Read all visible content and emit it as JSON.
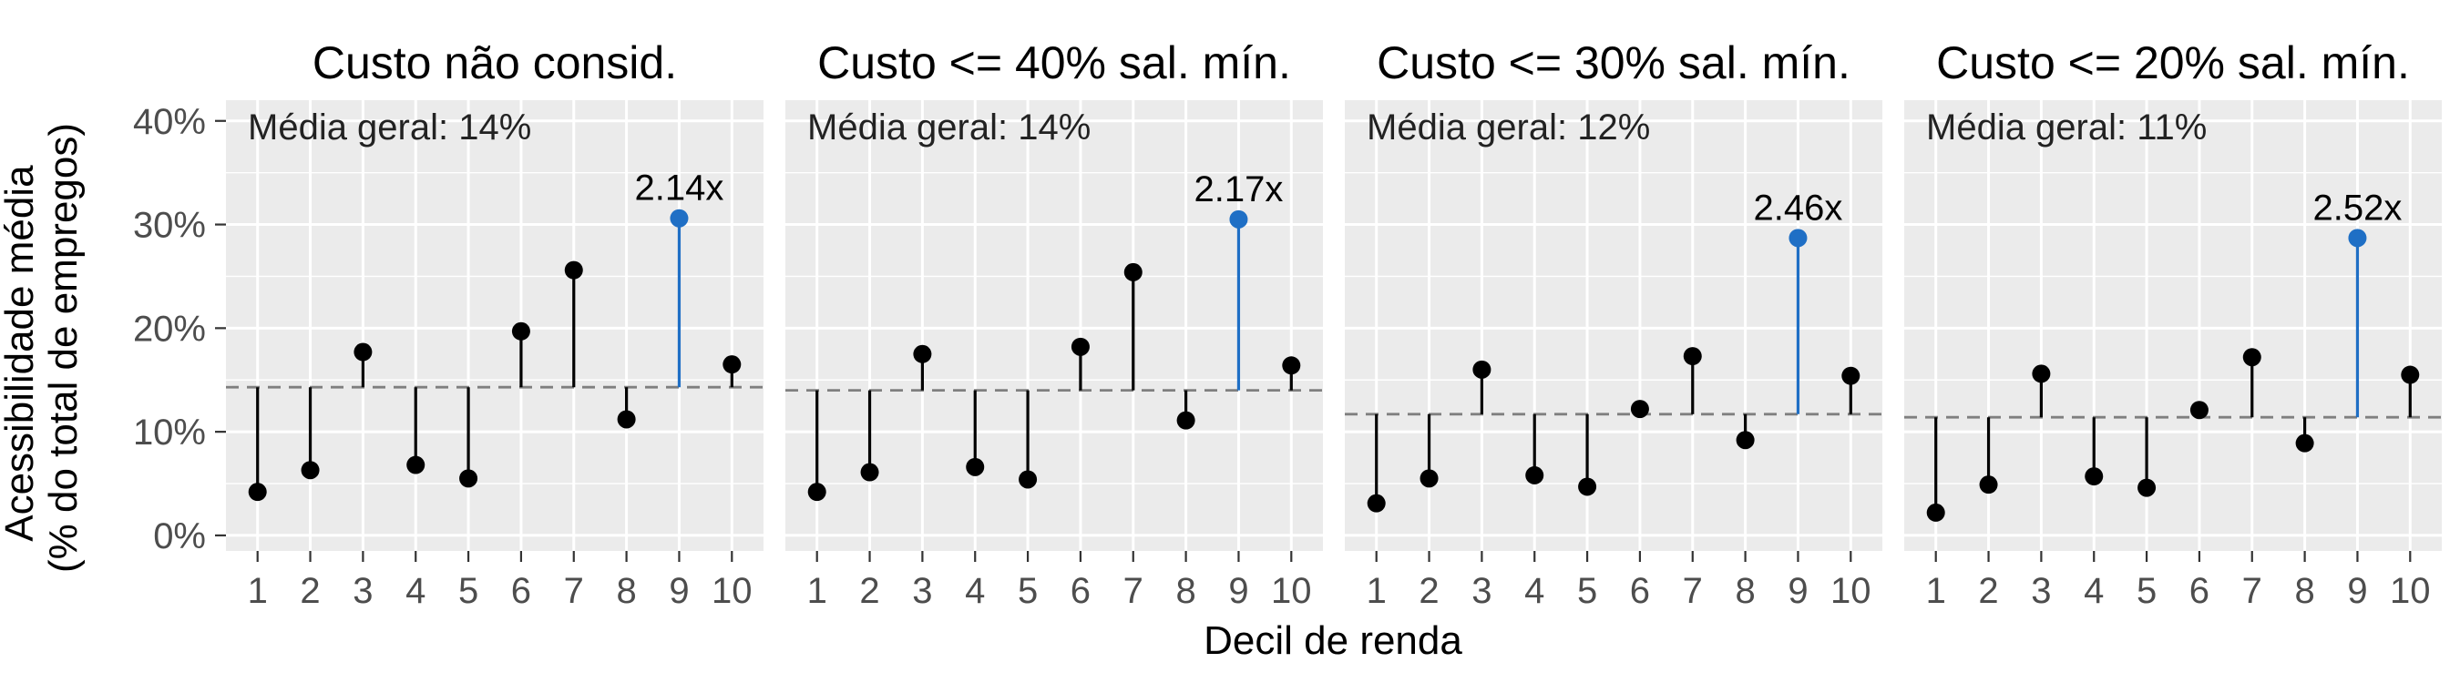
{
  "chart_data": {
    "type": "lollipop",
    "xlabel": "Decil de renda",
    "ylabel": [
      "Acessibilidade média",
      "(% do total de empregos)"
    ],
    "x": [
      1,
      2,
      3,
      4,
      5,
      6,
      7,
      8,
      9,
      10
    ],
    "ylim": [
      -1.5,
      42
    ],
    "yticks": [
      0,
      10,
      20,
      30,
      40
    ],
    "ytick_labels": [
      "0%",
      "10%",
      "20%",
      "30%",
      "40%"
    ],
    "grid": true,
    "colors": {
      "default": "#000000",
      "highlight": "#1F6FC5",
      "mean_line": "#7F7F7F",
      "panel": "#EBEBEB"
    },
    "highlight_decile": 9,
    "panels": [
      {
        "title": "Custo não consid.",
        "note": "Média geral: 14%",
        "mean": 14.3,
        "ratio_label": "2.14x",
        "values": [
          4.2,
          6.3,
          17.7,
          6.8,
          5.5,
          19.7,
          25.6,
          11.2,
          30.6,
          16.5
        ]
      },
      {
        "title": "Custo <= 40% sal. mín.",
        "note": "Média geral: 14%",
        "mean": 14.0,
        "ratio_label": "2.17x",
        "values": [
          4.2,
          6.1,
          17.5,
          6.6,
          5.4,
          18.2,
          25.4,
          11.1,
          30.5,
          16.4
        ]
      },
      {
        "title": "Custo <= 30% sal. mín.",
        "note": "Média geral: 12%",
        "mean": 11.7,
        "ratio_label": "2.46x",
        "values": [
          3.1,
          5.5,
          16.0,
          5.8,
          4.7,
          12.2,
          17.3,
          9.2,
          28.7,
          15.4
        ]
      },
      {
        "title": "Custo <= 20% sal. mín.",
        "note": "Média geral: 11%",
        "mean": 11.4,
        "ratio_label": "2.52x",
        "values": [
          2.2,
          4.9,
          15.6,
          5.7,
          4.6,
          12.1,
          17.2,
          8.9,
          28.7,
          15.5
        ]
      }
    ]
  }
}
